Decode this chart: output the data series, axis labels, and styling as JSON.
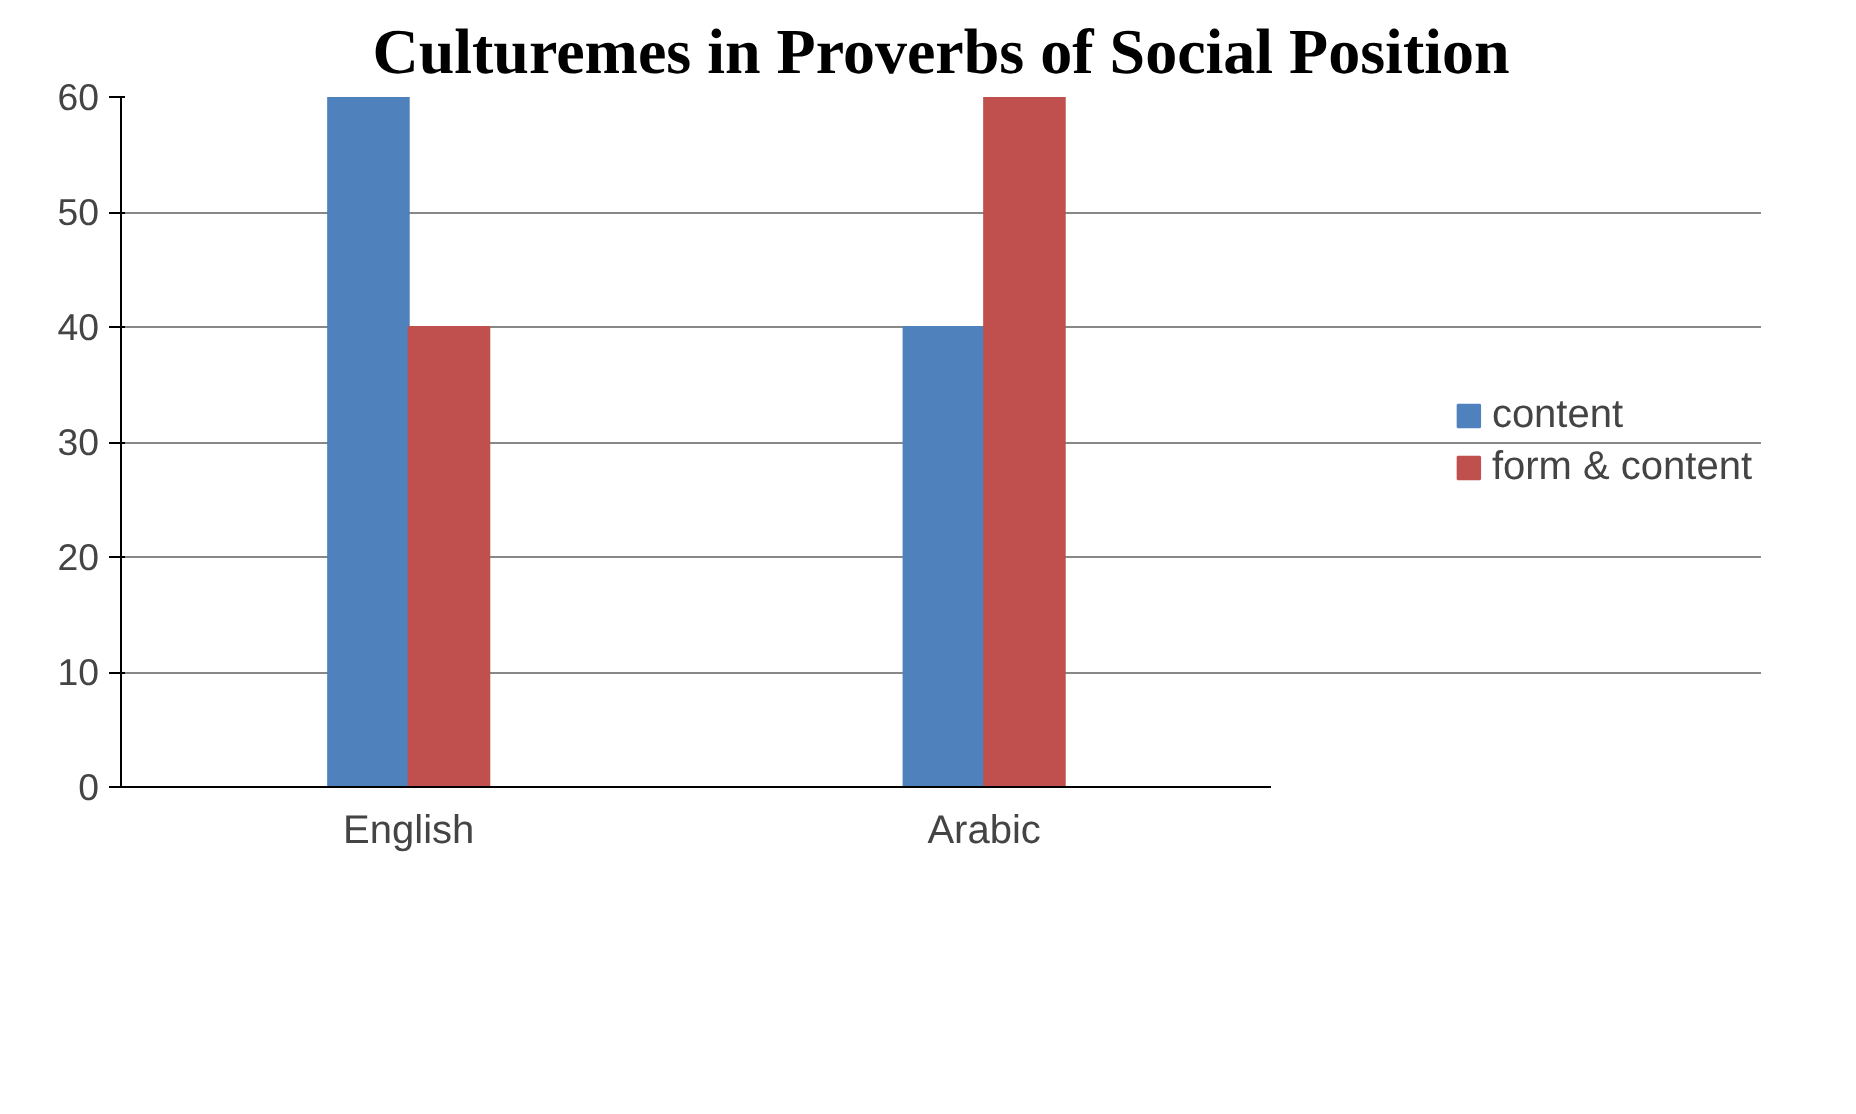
{
  "chart_data": {
    "type": "bar",
    "title": "Culturemes in Proverbs of Social Position",
    "categories": [
      "English",
      "Arabic"
    ],
    "series": [
      {
        "name": "content",
        "color": "#4f81bd",
        "values": [
          60,
          40
        ]
      },
      {
        "name": "form & content",
        "color": "#c0504d",
        "values": [
          40,
          60
        ]
      }
    ],
    "ylim": [
      0,
      60
    ],
    "yticks": [
      0,
      10,
      20,
      30,
      40,
      50,
      60
    ],
    "grid": "y",
    "legend": "right"
  }
}
